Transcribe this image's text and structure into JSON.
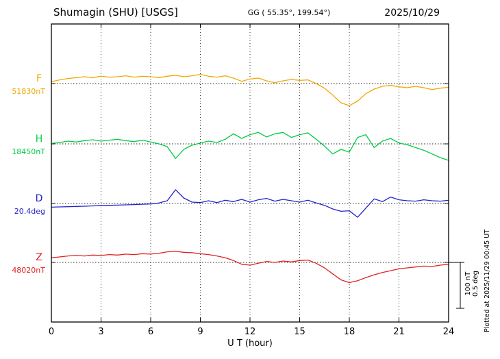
{
  "header": {
    "station_title": "Shumagin (SHU)  [USGS]",
    "coords": "GG ( 55.35°, 199.54°)",
    "date": "2025/10/29"
  },
  "channels": [
    {
      "label": "F",
      "baseline_label": "51830nT",
      "color": "#f0a800"
    },
    {
      "label": "H",
      "baseline_label": "18450nT",
      "color": "#00cc44"
    },
    {
      "label": "D",
      "baseline_label": "20.4deg",
      "color": "#2222cc"
    },
    {
      "label": "Z",
      "baseline_label": "48020nT",
      "color": "#e02020"
    }
  ],
  "axis": {
    "x_ticks": [
      0,
      3,
      6,
      9,
      12,
      15,
      18,
      21,
      24
    ],
    "x_label": "U T (hour)"
  },
  "scale_bar": {
    "line1": "100 nT",
    "line2": "0.5 deg"
  },
  "footer_note": "Plotted at 2025/11/29 00:45 UT",
  "chart_data": {
    "type": "line",
    "title": "Shumagin (SHU) [USGS] magnetogram 2025/10/29",
    "xlabel": "U T (hour)",
    "x_range": [
      0,
      24
    ],
    "x_step_hours": 0.5,
    "grid": "dotted vertical every 3 hours, dotted baseline per channel",
    "scale": {
      "nT_per_div": 100,
      "deg_per_div": 0.5
    },
    "series": [
      {
        "name": "F",
        "unit": "nT",
        "baseline_value": 51830,
        "color": "#f0a800",
        "offsets": [
          4,
          8,
          11,
          13,
          15,
          13,
          16,
          14,
          15,
          17,
          14,
          16,
          15,
          13,
          16,
          18,
          15,
          17,
          20,
          16,
          14,
          17,
          12,
          5,
          10,
          12,
          6,
          2,
          6,
          9,
          7,
          8,
          0,
          -10,
          -25,
          -42,
          -48,
          -38,
          -22,
          -12,
          -6,
          -4,
          -7,
          -9,
          -6,
          -9,
          -13,
          -10,
          -8
        ]
      },
      {
        "name": "H",
        "unit": "nT",
        "baseline_value": 18450,
        "color": "#00cc44",
        "offsets": [
          1,
          3,
          6,
          4,
          7,
          9,
          6,
          8,
          10,
          7,
          5,
          8,
          4,
          0,
          -6,
          -32,
          -12,
          -3,
          2,
          6,
          3,
          10,
          22,
          12,
          20,
          25,
          15,
          22,
          25,
          14,
          20,
          24,
          10,
          -5,
          -22,
          -12,
          -18,
          14,
          20,
          -8,
          6,
          12,
          2,
          -2,
          -8,
          -14,
          -22,
          -30,
          -36
        ]
      },
      {
        "name": "D",
        "unit": "deg",
        "baseline_value": 20.4,
        "color": "#2222cc",
        "offsets": [
          -0.04,
          -0.037,
          -0.035,
          -0.032,
          -0.03,
          -0.026,
          -0.024,
          -0.02,
          -0.018,
          -0.015,
          -0.012,
          -0.008,
          -0.005,
          0.005,
          0.03,
          0.15,
          0.06,
          0.015,
          0.01,
          0.03,
          0.01,
          0.035,
          0.02,
          0.045,
          0.015,
          0.04,
          0.055,
          0.025,
          0.045,
          0.03,
          0.015,
          0.035,
          0.005,
          -0.02,
          -0.06,
          -0.085,
          -0.08,
          -0.15,
          -0.05,
          0.05,
          0.02,
          0.07,
          0.04,
          0.03,
          0.025,
          0.04,
          0.03,
          0.025,
          0.035
        ]
      },
      {
        "name": "Z",
        "unit": "nT",
        "baseline_value": 48020,
        "color": "#e02020",
        "offsets": [
          10,
          12,
          14,
          15,
          14,
          16,
          15,
          17,
          16,
          18,
          17,
          19,
          18,
          20,
          23,
          24,
          22,
          21,
          19,
          17,
          14,
          10,
          4,
          -4,
          -6,
          -2,
          2,
          0,
          3,
          1,
          4,
          5,
          -2,
          -12,
          -25,
          -38,
          -44,
          -40,
          -33,
          -27,
          -22,
          -18,
          -14,
          -12,
          -10,
          -8,
          -9,
          -6,
          -4
        ]
      }
    ]
  }
}
